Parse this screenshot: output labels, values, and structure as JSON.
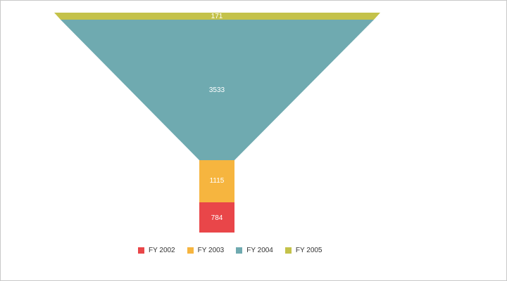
{
  "chart_data": {
    "type": "funnel",
    "title": "",
    "series": [
      {
        "name": "FY 2002",
        "value": 784,
        "label": "784",
        "color": "#E94649"
      },
      {
        "name": "FY 2003",
        "value": 1115,
        "label": "1115",
        "color": "#F6B53F"
      },
      {
        "name": "FY 2004",
        "value": 3533,
        "label": "3533",
        "color": "#6FAAB0"
      },
      {
        "name": "FY 2005",
        "value": 171,
        "label": "171",
        "color": "#C4C24A"
      }
    ],
    "legend": {
      "position": "bottom"
    },
    "background": "#ffffff",
    "border_color": "#c8c8c8"
  }
}
